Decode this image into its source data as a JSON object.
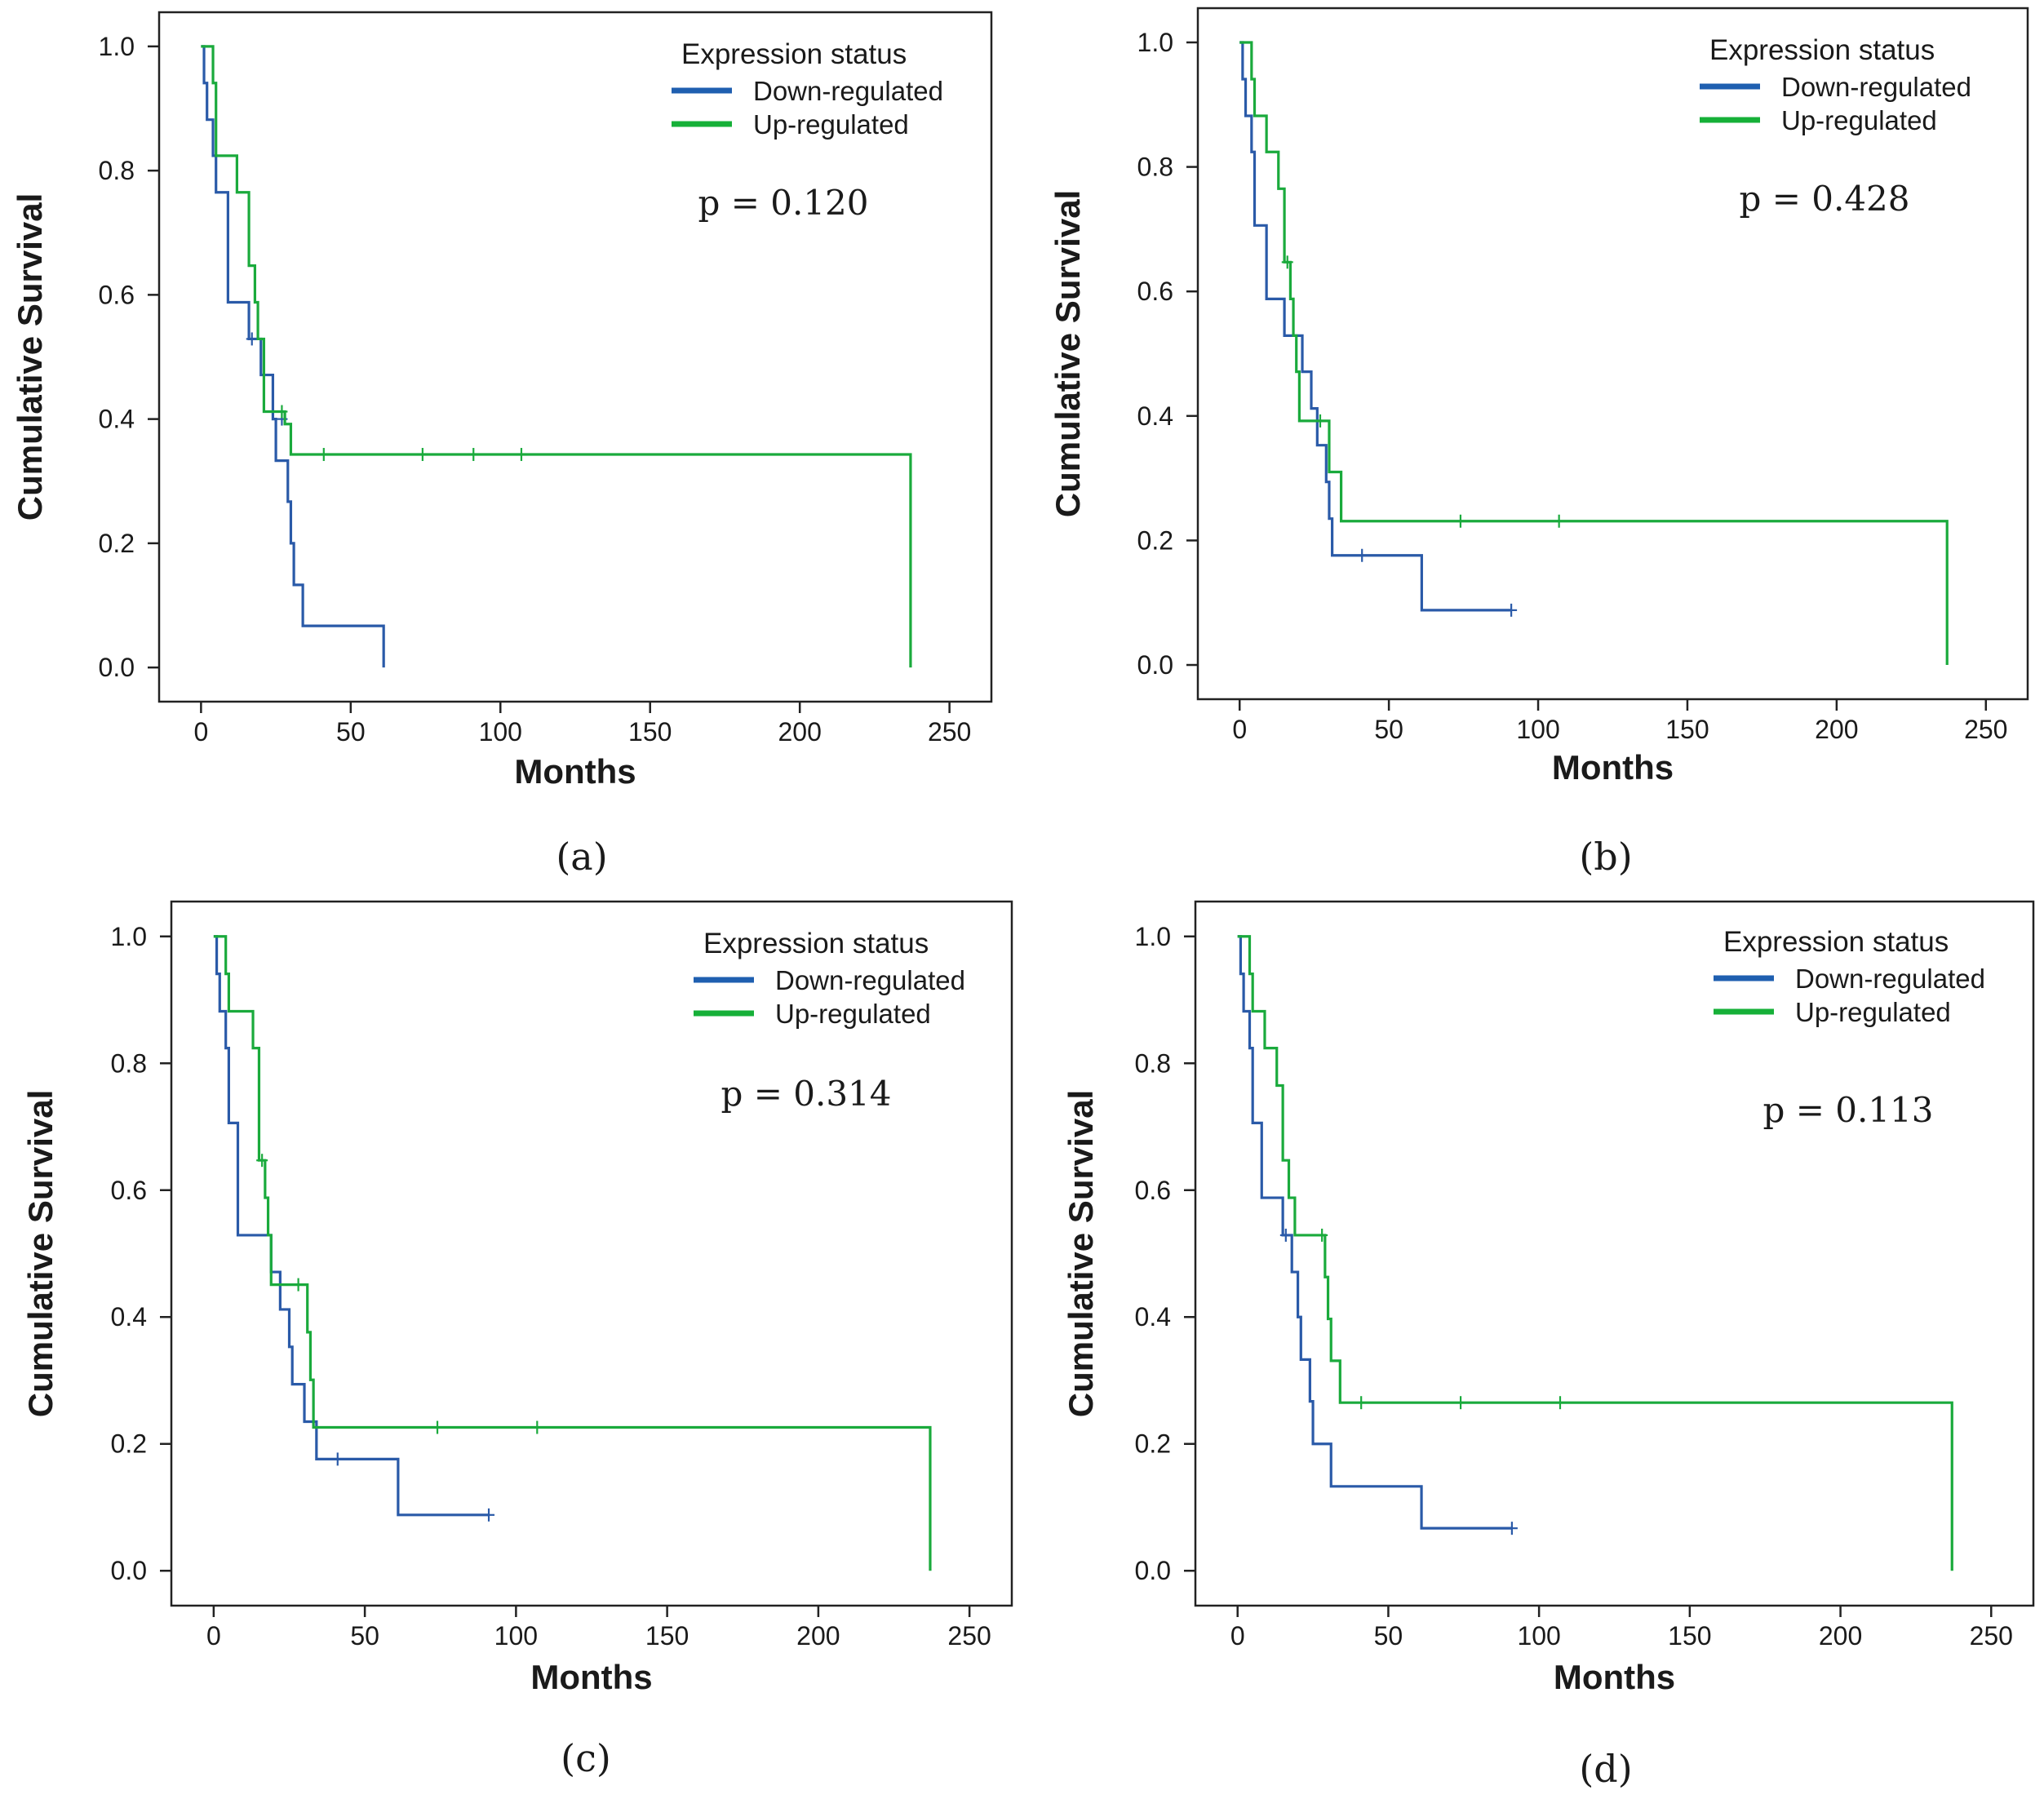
{
  "figure": {
    "panel_labels": [
      "(a)",
      "(b)",
      "(c)",
      "(d)"
    ]
  },
  "colors": {
    "down": "#2a5aa8",
    "up": "#1aaa3c",
    "legend_down": "#1f5fb0",
    "legend_up": "#16b038",
    "axis": "#222222"
  },
  "chart_data": [
    {
      "type": "line",
      "panel": "(a)",
      "xlabel": "Months",
      "ylabel": "Cumulative Survival",
      "xlim": [
        -14,
        264
      ],
      "ylim": [
        -0.055,
        1.055
      ],
      "xticks": [
        "0",
        "50",
        "100",
        "150",
        "200",
        "250"
      ],
      "yticks": [
        "0.0",
        "0.2",
        "0.4",
        "0.6",
        "0.8",
        "1.0"
      ],
      "legend": {
        "title": "Expression status",
        "entries": [
          "Down-regulated",
          "Up-regulated"
        ],
        "position": "top-right"
      },
      "annotation": "p = 0.120",
      "series": [
        {
          "name": "Down-regulated",
          "steps": [
            [
              0,
              1.0
            ],
            [
              1,
              0.941
            ],
            [
              2,
              0.882
            ],
            [
              4,
              0.824
            ],
            [
              5,
              0.765
            ],
            [
              9,
              0.588
            ],
            [
              16,
              0.529
            ],
            [
              20,
              0.471
            ],
            [
              24,
              0.4
            ],
            [
              25,
              0.333
            ],
            [
              29,
              0.267
            ],
            [
              30,
              0.2
            ],
            [
              31,
              0.133
            ],
            [
              34,
              0.067
            ],
            [
              61,
              0.0
            ]
          ],
          "censor": [
            [
              17,
              0.529
            ],
            [
              27,
              0.4
            ]
          ]
        },
        {
          "name": "Up-regulated",
          "steps": [
            [
              0,
              1.0
            ],
            [
              4,
              0.941
            ],
            [
              5,
              0.824
            ],
            [
              12,
              0.765
            ],
            [
              16,
              0.647
            ],
            [
              18,
              0.588
            ],
            [
              19,
              0.529
            ],
            [
              21,
              0.412
            ],
            [
              28,
              0.392
            ],
            [
              30,
              0.343
            ],
            [
              237,
              0.0
            ]
          ],
          "censor": [
            [
              27,
              0.412
            ],
            [
              41,
              0.343
            ],
            [
              74,
              0.343
            ],
            [
              91,
              0.343
            ],
            [
              107,
              0.343
            ]
          ]
        }
      ]
    },
    {
      "type": "line",
      "panel": "(b)",
      "xlabel": "Months",
      "ylabel": "Cumulative Survival",
      "xlim": [
        -14,
        264
      ],
      "ylim": [
        -0.055,
        1.055
      ],
      "xticks": [
        "0",
        "50",
        "100",
        "150",
        "200",
        "250"
      ],
      "yticks": [
        "0.0",
        "0.2",
        "0.4",
        "0.6",
        "0.8",
        "1.0"
      ],
      "legend": {
        "title": "Expression status",
        "entries": [
          "Down-regulated",
          "Up-regulated"
        ],
        "position": "top-right"
      },
      "annotation": "p = 0.428",
      "series": [
        {
          "name": "Down-regulated",
          "steps": [
            [
              0,
              1.0
            ],
            [
              1,
              0.941
            ],
            [
              2,
              0.882
            ],
            [
              4,
              0.824
            ],
            [
              5,
              0.706
            ],
            [
              9,
              0.588
            ],
            [
              15,
              0.529
            ],
            [
              21,
              0.471
            ],
            [
              24,
              0.412
            ],
            [
              26,
              0.353
            ],
            [
              29,
              0.294
            ],
            [
              30,
              0.235
            ],
            [
              31,
              0.176
            ],
            [
              61,
              0.088
            ]
          ],
          "censor": [
            [
              41,
              0.176
            ],
            [
              91,
              0.088
            ]
          ],
          "end_x": 91
        },
        {
          "name": "Up-regulated",
          "steps": [
            [
              0,
              1.0
            ],
            [
              4,
              0.941
            ],
            [
              5,
              0.882
            ],
            [
              9,
              0.824
            ],
            [
              13,
              0.765
            ],
            [
              15,
              0.647
            ],
            [
              17,
              0.588
            ],
            [
              18,
              0.529
            ],
            [
              19,
              0.471
            ],
            [
              20,
              0.392
            ],
            [
              30,
              0.31
            ],
            [
              34,
              0.231
            ],
            [
              237,
              0.0
            ]
          ],
          "censor": [
            [
              16,
              0.647
            ],
            [
              27,
              0.392
            ],
            [
              74,
              0.231
            ],
            [
              107,
              0.231
            ]
          ]
        }
      ]
    },
    {
      "type": "line",
      "panel": "(c)",
      "xlabel": "Months",
      "ylabel": "Cumulative Survival",
      "xlim": [
        -14,
        264
      ],
      "ylim": [
        -0.055,
        1.055
      ],
      "xticks": [
        "0",
        "50",
        "100",
        "150",
        "200",
        "250"
      ],
      "yticks": [
        "0.0",
        "0.2",
        "0.4",
        "0.6",
        "0.8",
        "1.0"
      ],
      "legend": {
        "title": "Expression status",
        "entries": [
          "Down-regulated",
          "Up-regulated"
        ],
        "position": "top-right"
      },
      "annotation": "p = 0.314",
      "series": [
        {
          "name": "Down-regulated",
          "steps": [
            [
              0,
              1.0
            ],
            [
              1,
              0.941
            ],
            [
              2,
              0.882
            ],
            [
              4,
              0.824
            ],
            [
              5,
              0.706
            ],
            [
              8,
              0.529
            ],
            [
              19,
              0.471
            ],
            [
              22,
              0.412
            ],
            [
              25,
              0.353
            ],
            [
              26,
              0.294
            ],
            [
              30,
              0.235
            ],
            [
              34,
              0.176
            ],
            [
              61,
              0.088
            ]
          ],
          "censor": [
            [
              41,
              0.176
            ],
            [
              91,
              0.088
            ]
          ],
          "end_x": 91
        },
        {
          "name": "Up-regulated",
          "steps": [
            [
              0,
              1.0
            ],
            [
              4,
              0.941
            ],
            [
              5,
              0.882
            ],
            [
              13,
              0.824
            ],
            [
              15,
              0.647
            ],
            [
              17,
              0.588
            ],
            [
              18,
              0.529
            ],
            [
              19,
              0.451
            ],
            [
              31,
              0.376
            ],
            [
              32,
              0.301
            ],
            [
              33,
              0.226
            ],
            [
              237,
              0.0
            ]
          ],
          "censor": [
            [
              16,
              0.647
            ],
            [
              28,
              0.451
            ],
            [
              74,
              0.226
            ],
            [
              107,
              0.226
            ]
          ]
        }
      ]
    },
    {
      "type": "line",
      "panel": "(d)",
      "xlabel": "Months",
      "ylabel": "Cumulative Survival",
      "xlim": [
        -14,
        264
      ],
      "ylim": [
        -0.055,
        1.055
      ],
      "xticks": [
        "0",
        "50",
        "100",
        "150",
        "200",
        "250"
      ],
      "yticks": [
        "0.0",
        "0.2",
        "0.4",
        "0.6",
        "0.8",
        "1.0"
      ],
      "legend": {
        "title": "Expression status",
        "entries": [
          "Down-regulated",
          "Up-regulated"
        ],
        "position": "top-right"
      },
      "annotation": "p = 0.113",
      "series": [
        {
          "name": "Down-regulated",
          "steps": [
            [
              0,
              1.0
            ],
            [
              1,
              0.941
            ],
            [
              2,
              0.882
            ],
            [
              4,
              0.824
            ],
            [
              5,
              0.706
            ],
            [
              8,
              0.588
            ],
            [
              15,
              0.529
            ],
            [
              18,
              0.471
            ],
            [
              20,
              0.4
            ],
            [
              21,
              0.333
            ],
            [
              24,
              0.267
            ],
            [
              25,
              0.2
            ],
            [
              31,
              0.133
            ],
            [
              61,
              0.067
            ]
          ],
          "censor": [
            [
              16,
              0.529
            ],
            [
              91,
              0.067
            ]
          ],
          "end_x": 91
        },
        {
          "name": "Up-regulated",
          "steps": [
            [
              0,
              1.0
            ],
            [
              4,
              0.941
            ],
            [
              5,
              0.882
            ],
            [
              9,
              0.824
            ],
            [
              13,
              0.765
            ],
            [
              15,
              0.647
            ],
            [
              17,
              0.588
            ],
            [
              19,
              0.529
            ],
            [
              29,
              0.463
            ],
            [
              30,
              0.397
            ],
            [
              31,
              0.331
            ],
            [
              34,
              0.265
            ],
            [
              237,
              0.0
            ]
          ],
          "censor": [
            [
              28,
              0.529
            ],
            [
              41,
              0.265
            ],
            [
              74,
              0.265
            ],
            [
              107,
              0.265
            ]
          ]
        }
      ]
    }
  ]
}
